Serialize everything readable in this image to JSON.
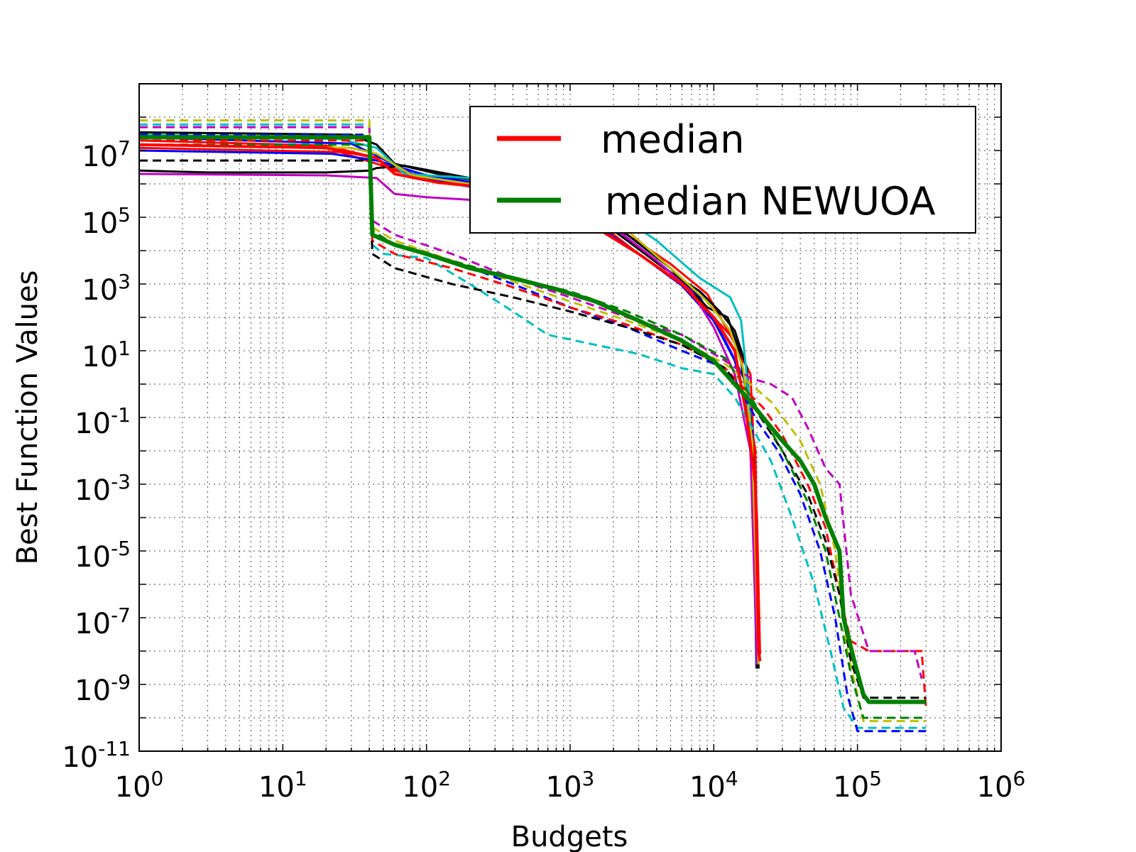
{
  "chart_data": {
    "type": "line",
    "title": "",
    "xlabel": "Budgets",
    "ylabel": "Best Function Values",
    "xscale": "log",
    "yscale": "log",
    "xlim": [
      1,
      1000000
    ],
    "ylim": [
      1e-11,
      1000000000.0
    ],
    "x_ticks": [
      {
        "base": "10",
        "exp": "0",
        "value": 1
      },
      {
        "base": "10",
        "exp": "1",
        "value": 10
      },
      {
        "base": "10",
        "exp": "2",
        "value": 100
      },
      {
        "base": "10",
        "exp": "3",
        "value": 1000
      },
      {
        "base": "10",
        "exp": "4",
        "value": 10000
      },
      {
        "base": "10",
        "exp": "5",
        "value": 100000
      },
      {
        "base": "10",
        "exp": "6",
        "value": 1000000
      }
    ],
    "y_ticks": [
      {
        "base": "10",
        "exp": "7",
        "value": 10000000.0
      },
      {
        "base": "10",
        "exp": "5",
        "value": 100000.0
      },
      {
        "base": "10",
        "exp": "3",
        "value": 1000.0
      },
      {
        "base": "10",
        "exp": "1",
        "value": 10.0
      },
      {
        "base": "10",
        "exp": "-1",
        "value": 0.1
      },
      {
        "base": "10",
        "exp": "-3",
        "value": 0.001
      },
      {
        "base": "10",
        "exp": "-5",
        "value": 1e-05
      },
      {
        "base": "10",
        "exp": "-7",
        "value": 1e-07
      },
      {
        "base": "10",
        "exp": "-9",
        "value": 1e-09
      },
      {
        "base": "10",
        "exp": "-11",
        "value": 1e-11
      }
    ],
    "grid": true,
    "legend": {
      "position": "top-right",
      "entries": [
        {
          "label": "median",
          "color": "#ff0000"
        },
        {
          "label": "median NEWUOA",
          "color": "#008000"
        }
      ]
    },
    "series": [
      {
        "group": "runs",
        "color": "#ff0000",
        "dash": false,
        "x": [
          1,
          20,
          45,
          60,
          120,
          250,
          600,
          1500,
          3000,
          6000,
          10000,
          15000,
          19500,
          20500,
          21000
        ],
        "y": [
          20000000.0,
          14000000.0,
          6000000.0,
          2500000.0,
          1200000.0,
          900000.0,
          300000.0,
          80000.0,
          8000.0,
          1000.0,
          100,
          15,
          0.01,
          1e-08,
          5e-09
        ]
      },
      {
        "group": "runs",
        "color": "#ff0000",
        "dash": false,
        "x": [
          1,
          25,
          45,
          80,
          200,
          500,
          1200,
          2500,
          5000,
          9000,
          13000,
          18000,
          20000,
          21000
        ],
        "y": [
          12000000.0,
          9000000.0,
          4000000.0,
          2000000.0,
          1100000.0,
          600000.0,
          200000.0,
          30000.0,
          4000.0,
          500,
          30,
          2,
          0.0001,
          8e-09
        ]
      },
      {
        "group": "runs",
        "color": "#0000ff",
        "dash": false,
        "x": [
          1,
          30,
          45,
          90,
          250,
          600,
          1500,
          3000,
          6000,
          10000,
          14000,
          18500,
          19800
        ],
        "y": [
          25000000.0,
          16000000.0,
          7000000.0,
          1500000.0,
          700000.0,
          300000.0,
          60000.0,
          8000.0,
          900,
          80,
          5,
          0.05,
          3e-09
        ]
      },
      {
        "group": "runs",
        "color": "#0000ff",
        "dash": false,
        "x": [
          1,
          22,
          45,
          100,
          300,
          700,
          2000,
          4000,
          8000,
          12000,
          17000,
          19500
        ],
        "y": [
          10000000.0,
          8000000.0,
          5000000.0,
          1800000.0,
          900000.0,
          400000.0,
          50000.0,
          5000.0,
          400,
          20,
          1,
          1e-05
        ]
      },
      {
        "group": "runs",
        "color": "#000000",
        "dash": false,
        "x": [
          1,
          3,
          20,
          40,
          45,
          70,
          200,
          500,
          1200,
          2500,
          4500,
          8000,
          11000,
          14000,
          17000,
          19000,
          20500
        ],
        "y": [
          2500000.0,
          2200000.0,
          2200000.0,
          2500000.0,
          3000000.0,
          3500000.0,
          1500000.0,
          800000.0,
          200000.0,
          20000.0,
          3000.0,
          600,
          150,
          40,
          3,
          0.003,
          3e-09
        ]
      },
      {
        "group": "runs",
        "color": "#000000",
        "dash": false,
        "x": [
          1,
          30,
          45,
          60,
          150,
          400,
          1000,
          2500,
          5000,
          9000,
          12500,
          15000,
          18000,
          20000
        ],
        "y": [
          35000000.0,
          30000000.0,
          15000000.0,
          4000000.0,
          1600000.0,
          1000000.0,
          300000.0,
          30000.0,
          3000.0,
          200,
          100,
          10,
          0.1,
          3e-09
        ]
      },
      {
        "group": "runs",
        "color": "#00bfbf",
        "dash": false,
        "x": [
          1,
          25,
          45,
          70,
          200,
          500,
          1000,
          2000,
          4000,
          8000,
          13000,
          15500,
          17500,
          19000,
          20000
        ],
        "y": [
          30000000.0,
          22000000.0,
          12000000.0,
          2000000.0,
          1500000.0,
          1000000.0,
          500000.0,
          150000.0,
          20000.0,
          1500,
          400,
          80,
          0.5,
          0.001,
          5e-09
        ]
      },
      {
        "group": "runs",
        "color": "#bf00bf",
        "dash": false,
        "x": [
          1,
          20,
          45,
          60,
          100,
          300,
          800,
          2000,
          4000,
          7000,
          10000,
          14000,
          18000,
          20000
        ],
        "y": [
          2000000.0,
          1800000.0,
          1500000.0,
          500000.0,
          400000.0,
          300000.0,
          150000.0,
          50000.0,
          5000.0,
          600,
          50,
          2,
          0.01,
          4e-09
        ]
      },
      {
        "group": "runs",
        "color": "#bfbf00",
        "dash": false,
        "x": [
          1,
          30,
          45,
          80,
          200,
          500,
          1200,
          2500,
          5000,
          9000,
          13000,
          16000,
          18500,
          20500
        ],
        "y": [
          15000000.0,
          12000000.0,
          8000000.0,
          1800000.0,
          1000000.0,
          700000.0,
          200000.0,
          40000.0,
          3000.0,
          300,
          40,
          3,
          0.02,
          4e-09
        ]
      },
      {
        "group": "runs",
        "color": "#00bfbf",
        "dash": true,
        "x": [
          1,
          40,
          42,
          50,
          100,
          200,
          400,
          700,
          1500,
          3000,
          6000,
          10000,
          14000,
          18000,
          25000,
          35000,
          50000,
          65000,
          80000,
          100000,
          300000
        ],
        "y": [
          60000000.0,
          60000000.0,
          15000.0,
          8000.0,
          6000.0,
          1000.0,
          150,
          30,
          15,
          8,
          3,
          2,
          0.4,
          0.06,
          0.005,
          0.0001,
          1e-06,
          1e-08,
          2e-10,
          5e-11,
          5e-11
        ]
      },
      {
        "group": "runs",
        "color": "#0000ff",
        "dash": true,
        "x": [
          1,
          40,
          42,
          60,
          150,
          400,
          1000,
          2500,
          6000,
          12000,
          16000,
          20000,
          28000,
          40000,
          55000,
          70000,
          85000,
          100000,
          300000
        ],
        "y": [
          30000000.0,
          30000000.0,
          30000.0,
          15000.0,
          5000.0,
          1000.0,
          200,
          50,
          10,
          3,
          0.5,
          0.08,
          0.01,
          0.0005,
          1e-05,
          1e-07,
          5e-10,
          4e-11,
          4e-11
        ]
      },
      {
        "group": "runs",
        "color": "#ff0000",
        "dash": true,
        "x": [
          1,
          40,
          42,
          60,
          150,
          400,
          1000,
          2500,
          6000,
          12000,
          17000,
          22000,
          30000,
          45000,
          60000,
          75000,
          90000,
          120000,
          280000,
          300000
        ],
        "y": [
          20000000.0,
          20000000.0,
          20000.0,
          8000.0,
          3000.0,
          800,
          200,
          60,
          15,
          3,
          0.6,
          0.2,
          0.03,
          0.001,
          5e-05,
          5e-07,
          2e-08,
          1e-08,
          1e-08,
          2e-10
        ]
      },
      {
        "group": "runs",
        "color": "#bf00bf",
        "dash": true,
        "x": [
          1,
          40,
          42,
          60,
          150,
          400,
          1000,
          2500,
          6000,
          12000,
          18000,
          25000,
          35000,
          45000,
          60000,
          75000,
          90000,
          120000,
          250000,
          280000
        ],
        "y": [
          50000000.0,
          50000000.0,
          80000.0,
          30000.0,
          8000.0,
          1500,
          400,
          100,
          30,
          5,
          1.5,
          1,
          0.4,
          0.05,
          0.003,
          0.001,
          5e-07,
          1e-08,
          1e-08,
          1.5e-09
        ]
      },
      {
        "group": "runs",
        "color": "#bfbf00",
        "dash": true,
        "x": [
          1,
          40,
          42,
          60,
          150,
          400,
          1000,
          2500,
          6000,
          12000,
          18000,
          25000,
          40000,
          55000,
          70000,
          85000,
          110000,
          300000
        ],
        "y": [
          80000000.0,
          80000000.0,
          50000.0,
          20000.0,
          5000.0,
          1200,
          300,
          80,
          20,
          4,
          1,
          0.3,
          0.02,
          0.001,
          1e-05,
          1e-08,
          8e-11,
          8e-11
        ]
      },
      {
        "group": "runs",
        "color": "#000000",
        "dash": true,
        "x": [
          1,
          40,
          42,
          60,
          150,
          400,
          1000,
          2500,
          6000,
          12000,
          17000,
          22000,
          30000,
          45000,
          60000,
          75000,
          90000,
          110000,
          300000
        ],
        "y": [
          5000000.0,
          5000000.0,
          8000.0,
          3000.0,
          1000.0,
          400,
          150,
          50,
          15,
          3,
          0.4,
          0.08,
          0.01,
          0.0005,
          2e-05,
          5e-07,
          5e-09,
          4e-10,
          4e-10
        ]
      },
      {
        "group": "runs",
        "color": "#008000",
        "dash": true,
        "x": [
          1,
          40,
          42,
          60,
          150,
          400,
          1000,
          2500,
          6000,
          12000,
          16000,
          22000,
          30000,
          45000,
          60000,
          75000,
          90000,
          110000,
          300000
        ],
        "y": [
          15000000.0,
          15000000.0,
          40000.0,
          15000.0,
          5000.0,
          1500,
          600,
          150,
          30,
          6,
          1,
          0.1,
          0.01,
          0.0003,
          1e-05,
          1e-07,
          2e-09,
          1e-10,
          1e-10
        ]
      },
      {
        "group": "median",
        "name": "median",
        "color": "#ff0000",
        "dash": false,
        "width": 4,
        "x": [
          1,
          20,
          45,
          60,
          120,
          250,
          600,
          1500,
          3000,
          6000,
          10000,
          14000,
          17000,
          19500,
          20500,
          21000
        ],
        "y": [
          15000000.0,
          12000000.0,
          6000000.0,
          2000000.0,
          1100000.0,
          800000.0,
          300000.0,
          50000.0,
          8000.0,
          1000.0,
          100,
          10,
          0.1,
          0.001,
          1e-08,
          5e-09
        ]
      },
      {
        "group": "median",
        "name": "median NEWUOA",
        "color": "#008000",
        "dash": false,
        "width": 6,
        "x": [
          1,
          40,
          42,
          60,
          100,
          200,
          400,
          800,
          1500,
          3000,
          6000,
          10000,
          14000,
          18000,
          22000,
          30000,
          40000,
          50000,
          60000,
          75000,
          80000,
          95000,
          110000,
          120000,
          300000
        ],
        "y": [
          25000000.0,
          25000000.0,
          30000.0,
          15000.0,
          8000.0,
          3000.0,
          1500,
          700,
          300,
          80,
          20,
          5,
          1,
          0.3,
          0.1,
          0.02,
          0.005,
          0.001,
          0.0001,
          1e-05,
          1e-07,
          5e-09,
          5e-10,
          3e-10,
          3e-10
        ]
      }
    ]
  }
}
